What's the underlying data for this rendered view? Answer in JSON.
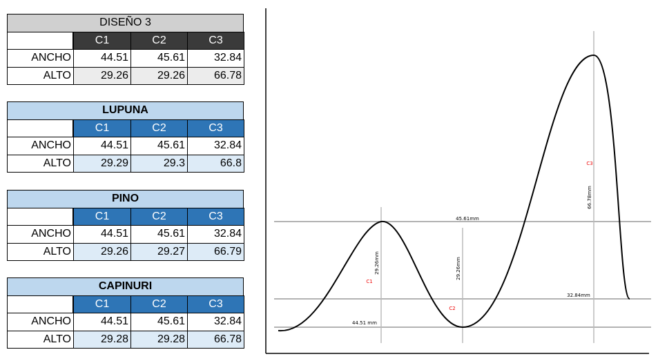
{
  "tables": [
    {
      "title": "DISEÑO 3",
      "headers": [
        "C1",
        "C2",
        "C3"
      ],
      "rows": [
        [
          "ANCHO",
          "44.51",
          "45.61",
          "32.84"
        ],
        [
          "ALTO",
          "29.26",
          "29.26",
          "66.78"
        ]
      ]
    },
    {
      "title": "LUPUNA",
      "headers": [
        "C1",
        "C2",
        "C3"
      ],
      "rows": [
        [
          "ANCHO",
          "44.51",
          "45.61",
          "32.84"
        ],
        [
          "ALTO",
          "29.29",
          "29.3",
          "66.8"
        ]
      ]
    },
    {
      "title": "PINO",
      "headers": [
        "C1",
        "C2",
        "C3"
      ],
      "rows": [
        [
          "ANCHO",
          "44.51",
          "45.61",
          "32.84"
        ],
        [
          "ALTO",
          "29.26",
          "29.27",
          "66.79"
        ]
      ]
    },
    {
      "title": "CAPINURI",
      "headers": [
        "C1",
        "C2",
        "C3"
      ],
      "rows": [
        [
          "ANCHO",
          "44.51",
          "45.61",
          "32.84"
        ],
        [
          "ALTO",
          "29.28",
          "29.28",
          "66.78"
        ]
      ]
    }
  ],
  "diagram": {
    "labels": [
      "45.61mm",
      "29.26mm",
      "C1",
      "29.26mm",
      "C2",
      "C3",
      "66.78mm",
      "32.84mm",
      "44.51 mm"
    ]
  }
}
